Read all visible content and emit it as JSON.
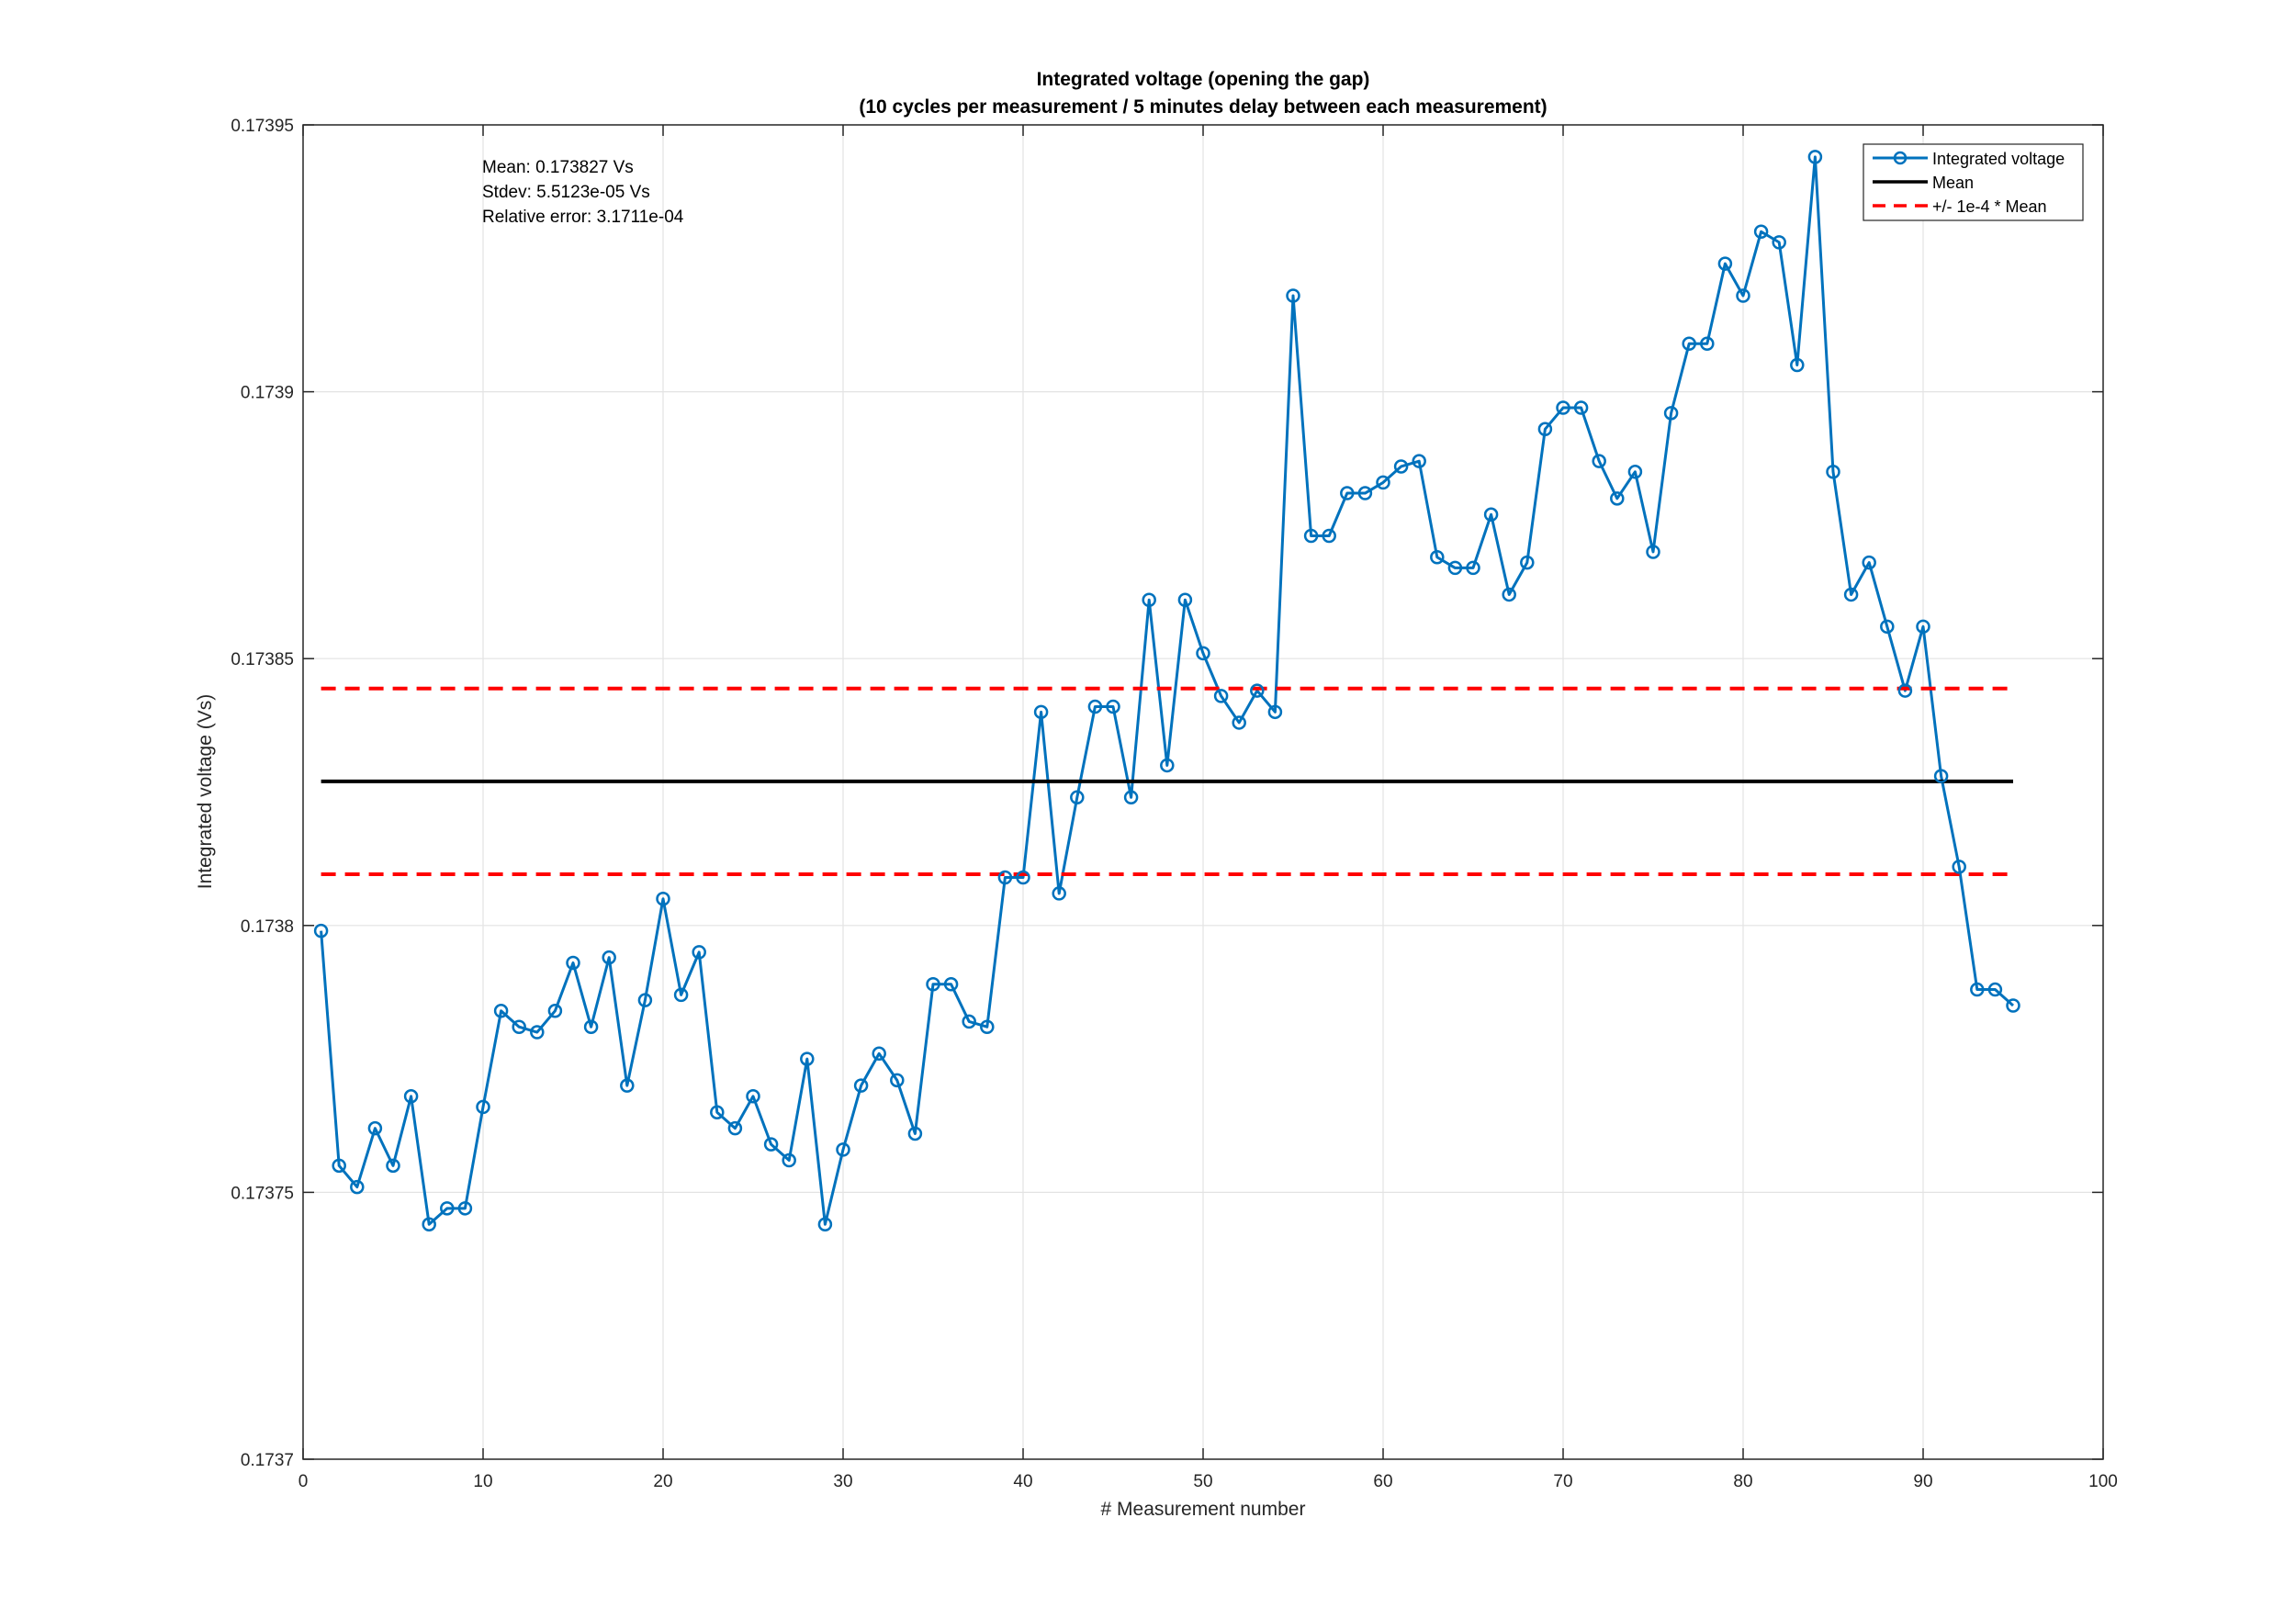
{
  "chart_data": {
    "type": "line",
    "title": "Integrated voltage (opening the gap)",
    "subtitle": "(10 cycles per measurement / 5 minutes delay between each measurement)",
    "xlabel": "# Measurement number",
    "ylabel": "Integrated voltage (Vs)",
    "xlim": [
      0,
      100
    ],
    "ylim": [
      0.1737,
      0.17395
    ],
    "x_ticks": [
      0,
      10,
      20,
      30,
      40,
      50,
      60,
      70,
      80,
      90,
      100
    ],
    "x_tick_labels": [
      "0",
      "10",
      "20",
      "30",
      "40",
      "50",
      "60",
      "70",
      "80",
      "90",
      "100"
    ],
    "y_ticks": [
      0.1737,
      0.17375,
      0.1738,
      0.17385,
      0.1739,
      0.17395
    ],
    "y_tick_labels": [
      "0.1737",
      "0.17375",
      "0.1738",
      "0.17385",
      "0.1739",
      "0.17395"
    ],
    "grid": true,
    "legend_position": "top-right",
    "annotations": [
      "Mean: 0.173827 Vs",
      "Stdev: 5.5123e-05 Vs",
      "Relative error: 3.1711e-04"
    ],
    "series": [
      {
        "name": "Integrated voltage",
        "color": "#0072BD",
        "marker": "circle",
        "x": [
          1,
          2,
          3,
          4,
          5,
          6,
          7,
          8,
          9,
          10,
          11,
          12,
          13,
          14,
          15,
          16,
          17,
          18,
          19,
          20,
          21,
          22,
          23,
          24,
          25,
          26,
          27,
          28,
          29,
          30,
          31,
          32,
          33,
          34,
          35,
          36,
          37,
          38,
          39,
          40,
          41,
          42,
          43,
          44,
          45,
          46,
          47,
          48,
          49,
          50,
          51,
          52,
          53,
          54,
          55,
          56,
          57,
          58,
          59,
          60,
          61,
          62,
          63,
          64,
          65,
          66,
          67,
          68,
          69,
          70,
          71,
          72,
          73,
          74,
          75,
          76,
          77,
          78,
          79,
          80,
          81,
          82,
          83,
          84,
          85,
          86,
          87,
          88,
          89,
          90,
          91,
          92,
          93,
          94,
          95
        ],
        "values": [
          0.173799,
          0.173755,
          0.173751,
          0.173762,
          0.173755,
          0.173768,
          0.173744,
          0.173747,
          0.173747,
          0.173766,
          0.173784,
          0.173781,
          0.17378,
          0.173784,
          0.173793,
          0.173781,
          0.173794,
          0.17377,
          0.173786,
          0.173805,
          0.173787,
          0.173795,
          0.173765,
          0.173762,
          0.173768,
          0.173759,
          0.173756,
          0.173775,
          0.173744,
          0.173758,
          0.17377,
          0.173776,
          0.173771,
          0.173761,
          0.173789,
          0.173789,
          0.173782,
          0.173781,
          0.173809,
          0.173809,
          0.17384,
          0.173806,
          0.173824,
          0.173841,
          0.173841,
          0.173824,
          0.173861,
          0.17383,
          0.173861,
          0.173851,
          0.173843,
          0.173838,
          0.173844,
          0.17384,
          0.173918,
          0.173873,
          0.173873,
          0.173881,
          0.173881,
          0.173883,
          0.173886,
          0.173887,
          0.173869,
          0.173867,
          0.173867,
          0.173877,
          0.173862,
          0.173868,
          0.173893,
          0.173897,
          0.173897,
          0.173887,
          0.17388,
          0.173885,
          0.17387,
          0.173896,
          0.173909,
          0.173909,
          0.173924,
          0.173918,
          0.17393,
          0.173928,
          0.173905,
          0.173944,
          0.173885,
          0.173862,
          0.173868,
          0.173856,
          0.173844,
          0.173856,
          0.173828,
          0.173811,
          0.173788,
          0.173788,
          0.173785
        ]
      },
      {
        "name": "Mean",
        "color": "#000000",
        "x": [
          1,
          95
        ],
        "values": [
          0.173827,
          0.173827
        ]
      },
      {
        "name": "+/- 1e-4 * Mean",
        "color": "#FF0000",
        "dashed": true,
        "x": [
          1,
          95
        ],
        "upper": [
          0.1738444,
          0.1738444
        ],
        "lower": [
          0.1738096,
          0.1738096
        ]
      }
    ]
  }
}
